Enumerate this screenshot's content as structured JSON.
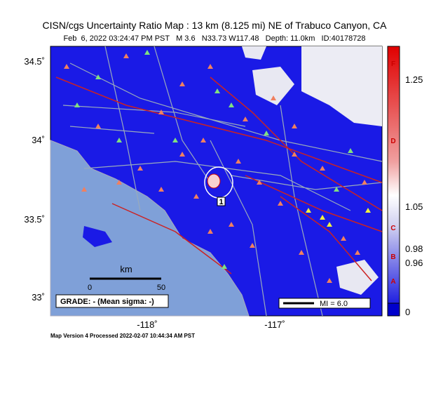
{
  "header": {
    "title": "CISN/cgs Uncertainty Ratio Map : 13 km (8.125 mi) NE of Trabuco Canyon, CA",
    "subtitle": "Feb  6, 2022 03:24:47 PM PST   M 3.6   N33.73 W117.48   Depth: 11.0km   ID:40178728"
  },
  "map": {
    "lat_labels": [
      "34.5˚",
      "34˚",
      "33.5˚",
      "33˚"
    ],
    "lon_labels": [
      "-118˚",
      "-117˚"
    ],
    "epicenter_label": "1",
    "scale_bar": {
      "unit": "km",
      "start": "0",
      "end": "50"
    },
    "grade": "GRADE: - (Mean sigma: -)",
    "mi_legend": "MI = 6.0"
  },
  "colorbar": {
    "values": [
      "1.25",
      "1.05",
      "0.98",
      "0.96",
      "0"
    ],
    "grades": [
      "F",
      "D",
      "C",
      "B",
      "A"
    ]
  },
  "footer": "Map Version 4 Processed 2022-02-07 10:44:34 AM PST"
}
